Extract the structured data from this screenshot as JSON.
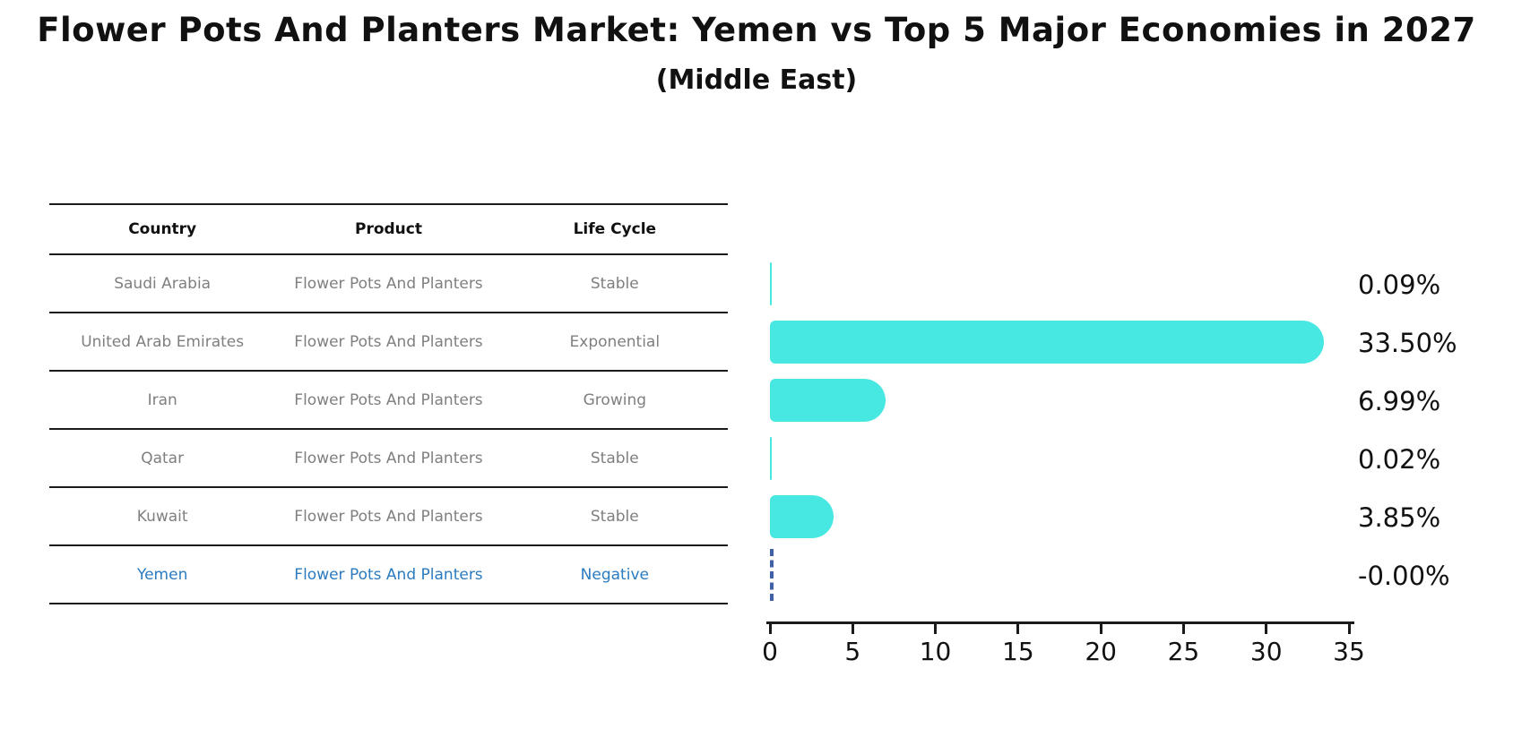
{
  "title": "Flower Pots And Planters Market: Yemen vs Top 5 Major Economies in 2027",
  "subtitle": "(Middle East)",
  "table": {
    "headers": [
      "Country",
      "Product",
      "Life Cycle"
    ],
    "rows": [
      {
        "country": "Saudi Arabia",
        "product": "Flower Pots And Planters",
        "life_cycle": "Stable"
      },
      {
        "country": "United Arab Emirates",
        "product": "Flower Pots And Planters",
        "life_cycle": "Exponential"
      },
      {
        "country": "Iran",
        "product": "Flower Pots And Planters",
        "life_cycle": "Growing"
      },
      {
        "country": "Qatar",
        "product": "Flower Pots And Planters",
        "life_cycle": "Stable"
      },
      {
        "country": "Kuwait",
        "product": "Flower Pots And Planters",
        "life_cycle": "Stable"
      },
      {
        "country": "Yemen",
        "product": "Flower Pots And Planters",
        "life_cycle": "Negative"
      }
    ]
  },
  "chart_data": {
    "type": "bar",
    "orientation": "horizontal",
    "title": "Flower Pots And Planters Market: Yemen vs Top 5 Major Economies in 2027",
    "subtitle": "(Middle East)",
    "categories": [
      "Saudi Arabia",
      "United Arab Emirates",
      "Iran",
      "Qatar",
      "Kuwait",
      "Yemen"
    ],
    "values": [
      0.09,
      33.5,
      6.99,
      0.02,
      3.85,
      0
    ],
    "value_labels": [
      "0.09%",
      "33.50%",
      "6.99%",
      "0.02%",
      "3.85%",
      "-0.00%"
    ],
    "xlabel": "",
    "ylabel": "",
    "xlim": [
      0,
      35
    ],
    "x_ticks": [
      0,
      5,
      10,
      15,
      20,
      25,
      30,
      35
    ],
    "grid": false,
    "legend": false,
    "notes": "Yemen shown as blue dashed vertical marker at zero"
  },
  "colors": {
    "accent": "#48e8e2",
    "highlight": "#2b7bbf",
    "dashed": "#3f61a5",
    "text": "#111111",
    "muted": "#7f7f7f",
    "line": "#1a1a1a"
  }
}
